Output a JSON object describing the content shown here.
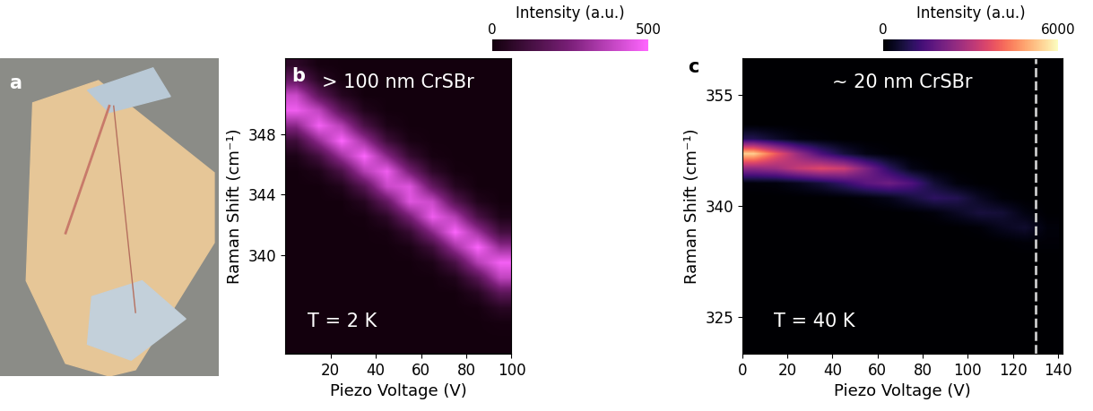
{
  "chart_data": [
    {
      "type": "image",
      "panel_label": "a"
    },
    {
      "type": "heatmap",
      "panel_label": "b",
      "annotations": [
        "> 100 nm CrSBr",
        "T = 2 K"
      ],
      "xlabel": "Piezo Voltage (V)",
      "ylabel": "Raman Shift (cm⁻¹)",
      "xlim": [
        0,
        100
      ],
      "ylim": [
        333.5,
        353
      ],
      "xticks": [
        20,
        40,
        60,
        80,
        100
      ],
      "yticks": [
        340,
        344,
        348
      ],
      "x": [
        5,
        15,
        25,
        35,
        45,
        55,
        65,
        75,
        85,
        95
      ],
      "y": [
        333.5,
        334.5,
        335.5,
        336.5,
        337.5,
        338.5,
        339.5,
        340.5,
        341.5,
        342.5,
        343.5,
        344.5,
        345.5,
        346.5,
        347.5,
        348.5,
        349.5,
        350.5,
        351.5,
        352.5
      ],
      "cells": [
        [
          5,
          5,
          5,
          5,
          5,
          5,
          5,
          5,
          5,
          5
        ],
        [
          5,
          5,
          5,
          5,
          5,
          5,
          5,
          5,
          5,
          5
        ],
        [
          5,
          5,
          5,
          5,
          5,
          5,
          5,
          5,
          5,
          10
        ],
        [
          5,
          5,
          5,
          5,
          5,
          5,
          5,
          5,
          8,
          55
        ],
        [
          5,
          5,
          5,
          5,
          5,
          5,
          5,
          5,
          48,
          180
        ],
        [
          5,
          5,
          5,
          5,
          5,
          5,
          5,
          35,
          165,
          380
        ],
        [
          5,
          5,
          5,
          5,
          5,
          5,
          25,
          135,
          360,
          480
        ],
        [
          5,
          5,
          5,
          5,
          5,
          18,
          105,
          320,
          495,
          300
        ],
        [
          5,
          5,
          5,
          5,
          12,
          85,
          280,
          495,
          320,
          120
        ],
        [
          5,
          5,
          5,
          8,
          65,
          240,
          470,
          360,
          135,
          28
        ],
        [
          5,
          5,
          5,
          48,
          200,
          440,
          400,
          165,
          35,
          5
        ],
        [
          5,
          5,
          35,
          165,
          400,
          440,
          200,
          48,
          5,
          5
        ],
        [
          5,
          28,
          135,
          360,
          470,
          240,
          65,
          8,
          5,
          5
        ],
        [
          25,
          120,
          320,
          495,
          280,
          85,
          12,
          5,
          5,
          5
        ],
        [
          105,
          300,
          495,
          320,
          105,
          18,
          5,
          5,
          5,
          5
        ],
        [
          280,
          480,
          360,
          135,
          25,
          5,
          5,
          5,
          5,
          5
        ],
        [
          470,
          380,
          165,
          35,
          5,
          5,
          5,
          5,
          5,
          5
        ],
        [
          400,
          180,
          48,
          5,
          5,
          5,
          5,
          5,
          5,
          5
        ],
        [
          200,
          55,
          8,
          5,
          5,
          5,
          5,
          5,
          5,
          5
        ],
        [
          65,
          10,
          5,
          5,
          5,
          5,
          5,
          5,
          5,
          5
        ]
      ],
      "colorbar": {
        "label": "Intensity (a.u.)",
        "range": [
          0,
          500
        ],
        "ticks": [
          0,
          500
        ]
      }
    },
    {
      "type": "heatmap",
      "panel_label": "c",
      "annotations": [
        "~ 20 nm CrSBr",
        "T = 40 K"
      ],
      "xlabel": "Piezo Voltage (V)",
      "ylabel": "Raman Shift (cm⁻¹)",
      "xlim": [
        0,
        142
      ],
      "ylim": [
        320,
        360
      ],
      "xticks": [
        0,
        20,
        40,
        60,
        80,
        100,
        120,
        140
      ],
      "yticks": [
        325,
        340,
        355
      ],
      "vline": 130,
      "x": [
        5,
        15,
        25,
        35,
        45,
        55,
        65,
        75,
        85,
        95,
        105,
        115,
        125,
        135
      ],
      "y": [
        321,
        323,
        325,
        327,
        329,
        331,
        333,
        335,
        337,
        339,
        341,
        343,
        345,
        347,
        349,
        351,
        353,
        355,
        357,
        359
      ],
      "cells": [
        [
          0,
          0,
          0,
          0,
          0,
          0,
          0,
          0,
          0,
          0,
          0,
          0,
          0,
          0
        ],
        [
          0,
          0,
          0,
          0,
          0,
          0,
          0,
          0,
          0,
          0,
          0,
          0,
          0,
          0
        ],
        [
          0,
          0,
          0,
          0,
          0,
          0,
          0,
          0,
          0,
          0,
          0,
          0,
          0,
          0
        ],
        [
          0,
          0,
          0,
          0,
          0,
          0,
          0,
          0,
          0,
          0,
          0,
          0,
          0,
          0
        ],
        [
          0,
          0,
          0,
          0,
          0,
          0,
          0,
          0,
          0,
          0,
          0,
          0,
          0,
          0
        ],
        [
          0,
          0,
          0,
          0,
          0,
          0,
          0,
          0,
          0,
          0,
          0,
          0,
          0,
          0
        ],
        [
          0,
          0,
          0,
          0,
          0,
          0,
          0,
          0,
          0,
          0,
          0,
          0,
          0,
          5
        ],
        [
          0,
          0,
          0,
          0,
          0,
          0,
          0,
          0,
          0,
          0,
          0,
          20,
          90,
          80
        ],
        [
          0,
          0,
          0,
          0,
          0,
          0,
          0,
          0,
          0,
          20,
          90,
          350,
          520,
          120
        ],
        [
          0,
          0,
          0,
          0,
          0,
          0,
          0,
          30,
          130,
          400,
          680,
          600,
          200,
          15
        ],
        [
          0,
          0,
          0,
          0,
          30,
          110,
          290,
          670,
          1020,
          880,
          400,
          80,
          10,
          0
        ],
        [
          100,
          140,
          340,
          650,
          1120,
          1680,
          1960,
          1490,
          600,
          140,
          20,
          0,
          0,
          0
        ],
        [
          2440,
          2640,
          3230,
          3610,
          3330,
          2160,
          1010,
          240,
          40,
          0,
          0,
          0,
          0,
          0
        ],
        [
          5390,
          3890,
          2520,
          1410,
          680,
          220,
          70,
          0,
          0,
          0,
          0,
          0,
          0,
          0
        ],
        [
          870,
          480,
          170,
          80,
          0,
          0,
          0,
          0,
          0,
          0,
          0,
          0,
          0,
          0
        ],
        [
          0,
          0,
          0,
          0,
          0,
          0,
          0,
          0,
          0,
          0,
          0,
          0,
          0,
          0
        ],
        [
          0,
          0,
          0,
          0,
          0,
          0,
          0,
          0,
          0,
          0,
          0,
          0,
          0,
          0
        ],
        [
          0,
          0,
          0,
          0,
          0,
          0,
          0,
          0,
          0,
          0,
          0,
          0,
          0,
          0
        ],
        [
          0,
          0,
          0,
          0,
          0,
          0,
          0,
          0,
          0,
          0,
          0,
          0,
          0,
          0
        ],
        [
          0,
          0,
          0,
          0,
          0,
          0,
          0,
          0,
          0,
          0,
          0,
          0,
          0,
          0
        ]
      ],
      "colorbar": {
        "label": "Intensity (a.u.)",
        "range": [
          0,
          6000
        ],
        "ticks": [
          0,
          6000
        ]
      }
    }
  ]
}
